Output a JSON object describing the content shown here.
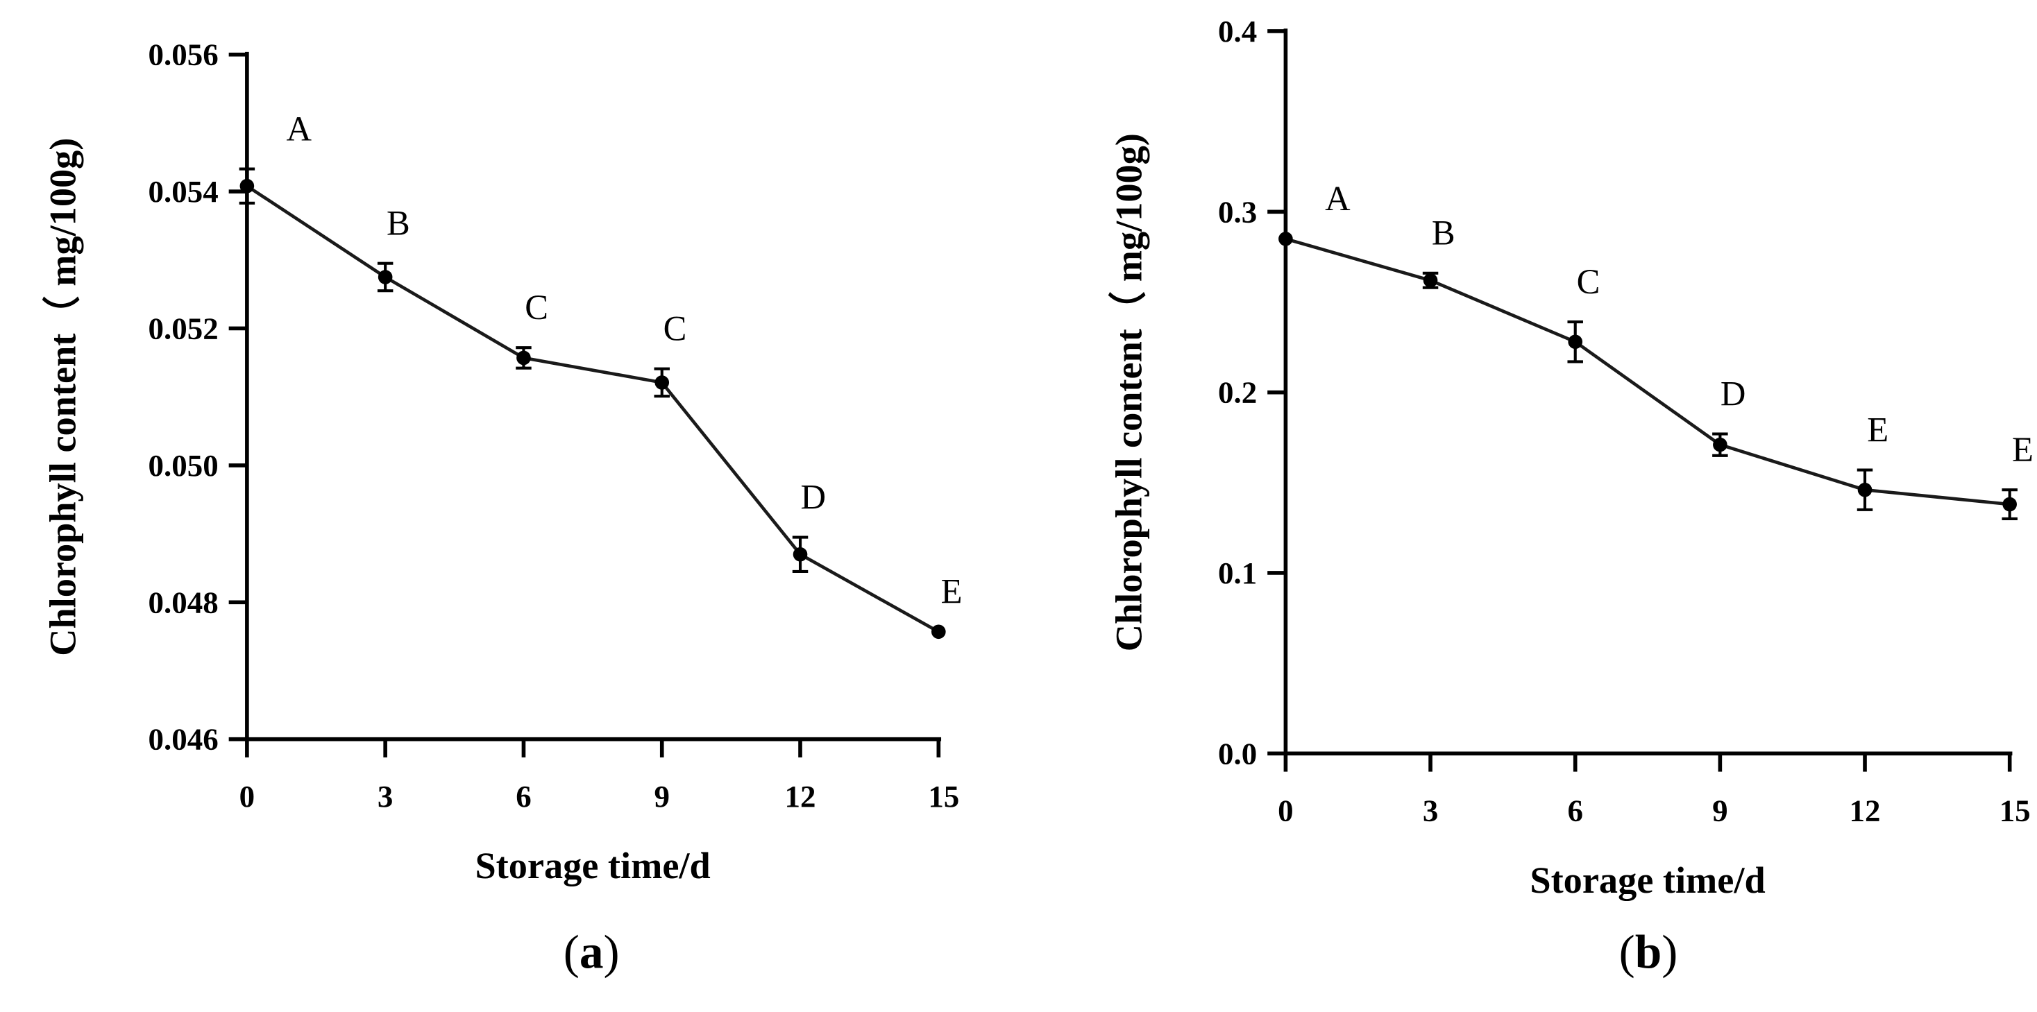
{
  "chart_data": [
    {
      "type": "line",
      "panel_label": "(a)",
      "panel_letter": "a",
      "xlabel": "Storage time/d",
      "ylabel": "Chlorophyll content（ mg/100g)",
      "x": [
        0,
        3,
        6,
        9,
        12,
        15
      ],
      "x_tick_labels": [
        "0",
        "3",
        "6",
        "9",
        "12",
        "15"
      ],
      "xlim": [
        0,
        15
      ],
      "ylim": [
        0.046,
        0.056
      ],
      "y_ticks": [
        0.046,
        0.048,
        0.05,
        0.052,
        0.054,
        0.056
      ],
      "y_tick_labels": [
        "0.046",
        "0.048",
        "0.050",
        "0.052",
        "0.054",
        "0.056"
      ],
      "series": [
        {
          "name": "Chlorophyll content",
          "values": [
            0.05408,
            0.05275,
            0.05157,
            0.05121,
            0.0487,
            0.04757
          ],
          "errors": [
            0.00025,
            0.0002,
            0.00015,
            0.0002,
            0.00025,
            0.0
          ],
          "letters": [
            "A",
            "B",
            "C",
            "C",
            "D",
            "E"
          ]
        }
      ],
      "line_color": "#1a1a1a"
    },
    {
      "type": "line",
      "panel_label": "(b)",
      "panel_letter": "b",
      "xlabel": "Storage time/d",
      "ylabel": "Chlorophyll content（ mg/100g)",
      "x": [
        0,
        3,
        6,
        9,
        12,
        15
      ],
      "x_tick_labels": [
        "0",
        "3",
        "6",
        "9",
        "12",
        "15"
      ],
      "xlim": [
        0,
        15
      ],
      "ylim": [
        0.0,
        0.4
      ],
      "y_ticks": [
        0.0,
        0.1,
        0.2,
        0.3,
        0.4
      ],
      "y_tick_labels": [
        "0.0",
        "0.1",
        "0.2",
        "0.3",
        "0.4"
      ],
      "series": [
        {
          "name": "Chlorophyll content",
          "values": [
            0.285,
            0.262,
            0.228,
            0.171,
            0.146,
            0.138
          ],
          "errors": [
            0.0,
            0.004,
            0.011,
            0.006,
            0.011,
            0.008
          ],
          "letters": [
            "A",
            "B",
            "C",
            "D",
            "E",
            "E"
          ]
        }
      ],
      "line_color": "#1a1a1a"
    }
  ]
}
